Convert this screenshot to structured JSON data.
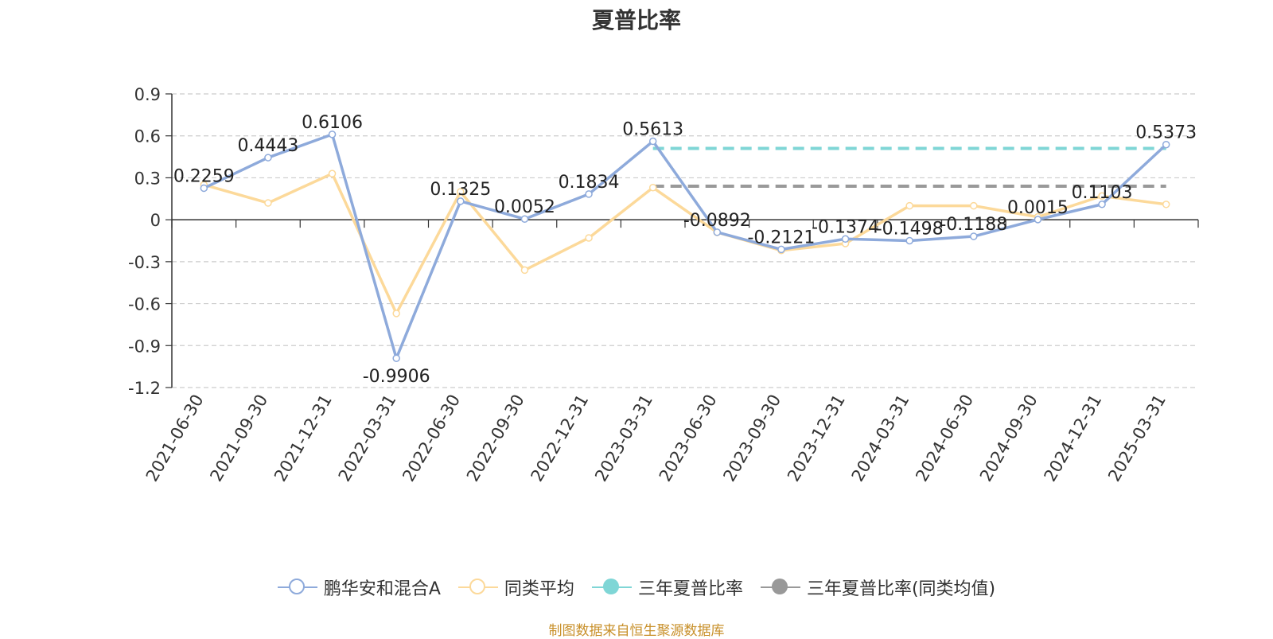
{
  "chart_data": {
    "type": "line",
    "title": "夏普比率",
    "categories": [
      "2021-06-30",
      "2021-09-30",
      "2021-12-31",
      "2022-03-31",
      "2022-06-30",
      "2022-09-30",
      "2022-12-31",
      "2023-03-31",
      "2023-06-30",
      "2023-09-30",
      "2023-12-31",
      "2024-03-31",
      "2024-06-30",
      "2024-09-30",
      "2024-12-31",
      "2025-03-31"
    ],
    "ylim": [
      -1.2,
      0.9
    ],
    "yticks": [
      "0.9",
      "0.6",
      "0.3",
      "0",
      "-0.3",
      "-0.6",
      "-0.9",
      "-1.2"
    ],
    "grid": true,
    "legend_position": "bottom",
    "series": [
      {
        "name": "鹏华安和混合A",
        "color": "#8eaadb",
        "values": [
          0.2259,
          0.4443,
          0.6106,
          -0.9906,
          0.1325,
          0.0052,
          0.1834,
          0.5613,
          -0.0892,
          -0.2121,
          -0.1374,
          -0.1498,
          -0.1188,
          0.0015,
          0.1103,
          0.5373
        ],
        "labels": [
          "0.2259",
          "0.4443",
          "0.6106",
          "-0.9906",
          "0.1325",
          "0.0052",
          "0.1834",
          "0.5613",
          "-0.0892",
          "-0.2121",
          "-0.1374",
          "-0.1498",
          "-0.1188",
          "0.0015",
          "0.1103",
          "0.5373"
        ]
      },
      {
        "name": "同类平均",
        "color": "#fcd99a",
        "values": [
          0.25,
          0.12,
          0.33,
          -0.67,
          0.2,
          -0.36,
          -0.13,
          0.23,
          -0.09,
          -0.22,
          -0.17,
          0.1,
          0.1,
          0.02,
          0.17,
          0.11
        ]
      }
    ],
    "reference_lines": [
      {
        "name": "三年夏普比率",
        "color": "#7fd6d6",
        "value": 0.51,
        "from": "2023-03-31",
        "to": "2025-03-31"
      },
      {
        "name": "三年夏普比率(同类均值)",
        "color": "#999999",
        "value": 0.24,
        "from": "2023-03-31",
        "to": "2025-03-31"
      }
    ]
  },
  "legend": [
    {
      "name": "鹏华安和混合A",
      "color": "#8eaadb",
      "filled": false
    },
    {
      "name": "同类平均",
      "color": "#fcd99a",
      "filled": false
    },
    {
      "name": "三年夏普比率",
      "color": "#7fd6d6",
      "filled": true
    },
    {
      "name": "三年夏普比率(同类均值)",
      "color": "#999999",
      "filled": true
    }
  ],
  "source": "制图数据来自恒生聚源数据库"
}
